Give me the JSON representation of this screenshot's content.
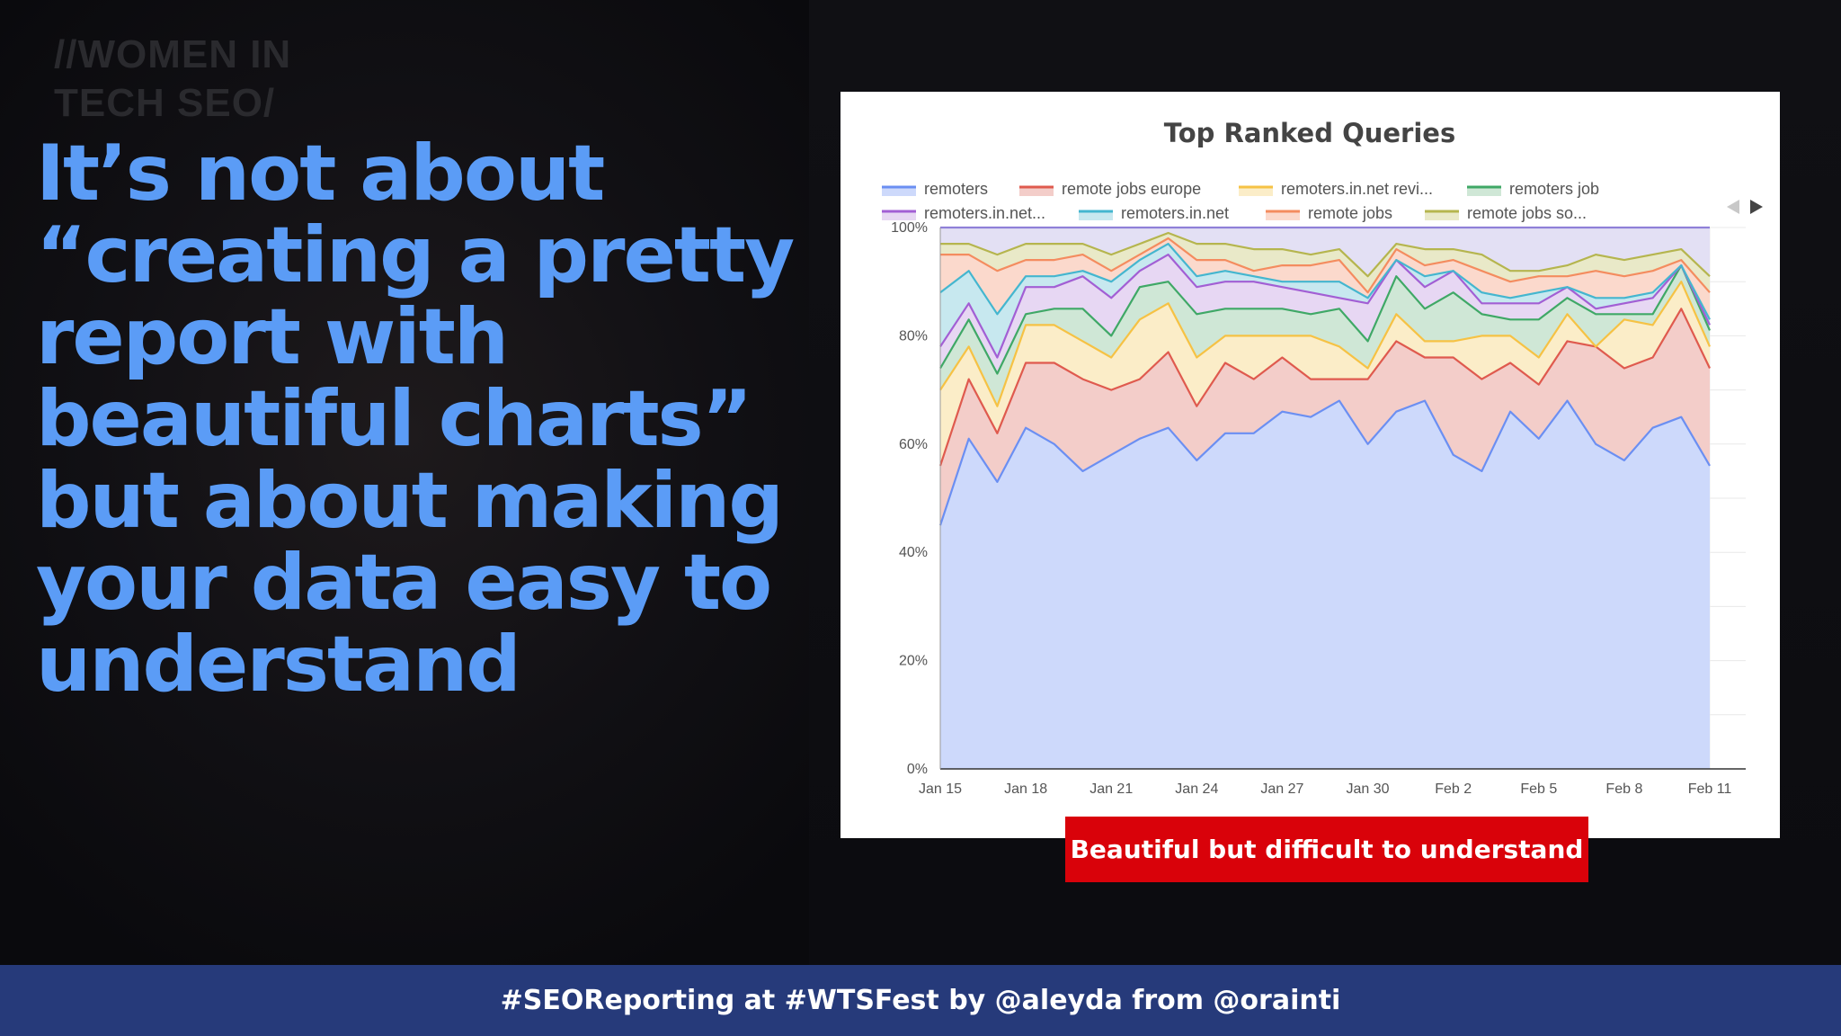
{
  "slide": {
    "logo_line1": "//WOMEN IN",
    "logo_line2": "TECH SEO/",
    "headline": "It’s not about “creating a pretty report with beautiful charts” but about making your data easy to understand",
    "caption": "Beautiful but difficult to understand",
    "footer": "#SEOReporting at #WTSFest by @aleyda from @orainti",
    "colors": {
      "headline": "#5b9cf6",
      "caption_bg": "#d9020a",
      "footer_bg": "#263a7a"
    }
  },
  "chart_data": {
    "type": "area",
    "stacked": "percent",
    "title": "Top Ranked Queries",
    "legend_position": "top",
    "y_ticks": [
      "0%",
      "20%",
      "40%",
      "60%",
      "80%",
      "100%"
    ],
    "ylim": [
      0,
      100
    ],
    "x_ticks": [
      "Jan 15",
      "Jan 18",
      "Jan 21",
      "Jan 24",
      "Jan 27",
      "Jan 30",
      "Feb 2",
      "Feb 5",
      "Feb 8",
      "Feb 11"
    ],
    "x": [
      "Jan 15",
      "Jan 16",
      "Jan 17",
      "Jan 18",
      "Jan 19",
      "Jan 20",
      "Jan 21",
      "Jan 22",
      "Jan 23",
      "Jan 24",
      "Jan 25",
      "Jan 26",
      "Jan 27",
      "Jan 28",
      "Jan 29",
      "Jan 30",
      "Jan 31",
      "Feb 1",
      "Feb 2",
      "Feb 3",
      "Feb 4",
      "Feb 5",
      "Feb 6",
      "Feb 7",
      "Feb 8",
      "Feb 9",
      "Feb 10",
      "Feb 11"
    ],
    "grid": true,
    "series": [
      {
        "name": "remoters",
        "color": "#6b8ff2",
        "fill": "#cdd9fb",
        "values": [
          45,
          61,
          53,
          63,
          60,
          55,
          58,
          61,
          63,
          57,
          62,
          62,
          66,
          65,
          68,
          60,
          66,
          68,
          58,
          55,
          66,
          61,
          68,
          60,
          57,
          63,
          65,
          56
        ]
      },
      {
        "name": "remote jobs europe",
        "color": "#df5a4e",
        "fill": "#f3cdc9",
        "values": [
          11,
          11,
          9,
          12,
          15,
          17,
          12,
          11,
          14,
          10,
          13,
          10,
          10,
          7,
          4,
          12,
          13,
          8,
          18,
          17,
          9,
          10,
          11,
          18,
          17,
          13,
          20,
          18
        ]
      },
      {
        "name": "remoters.in.net revi...",
        "color": "#f6c244",
        "fill": "#fbedc8",
        "values": [
          14,
          6,
          5,
          7,
          7,
          7,
          6,
          11,
          9,
          9,
          5,
          8,
          4,
          8,
          6,
          2,
          5,
          3,
          3,
          8,
          5,
          5,
          5,
          0,
          9,
          6,
          5,
          4
        ]
      },
      {
        "name": "remoters job",
        "color": "#3fa866",
        "fill": "#cfe7d6",
        "values": [
          4,
          5,
          6,
          2,
          3,
          6,
          4,
          6,
          4,
          8,
          5,
          5,
          5,
          4,
          7,
          5,
          7,
          6,
          9,
          4,
          3,
          7,
          3,
          6,
          1,
          2,
          3,
          3
        ]
      },
      {
        "name": "remoters.in.net...",
        "color": "#a25fd4",
        "fill": "#e7d7f3",
        "values": [
          4,
          3,
          3,
          5,
          4,
          6,
          7,
          3,
          5,
          5,
          5,
          5,
          4,
          4,
          2,
          7,
          3,
          4,
          4,
          2,
          3,
          3,
          2,
          1,
          2,
          3,
          0,
          1
        ]
      },
      {
        "name": "remoters.in.net",
        "color": "#44b6cf",
        "fill": "#c7e8ef",
        "values": [
          10,
          6,
          8,
          2,
          2,
          1,
          3,
          2,
          2,
          2,
          2,
          1,
          1,
          2,
          3,
          1,
          0,
          2,
          0,
          2,
          1,
          2,
          0,
          2,
          1,
          1,
          0,
          1
        ]
      },
      {
        "name": "remote jobs",
        "color": "#f48c5f",
        "fill": "#fbd9cc",
        "values": [
          7,
          3,
          8,
          3,
          3,
          3,
          2,
          1,
          1,
          3,
          2,
          1,
          3,
          3,
          4,
          1,
          2,
          2,
          2,
          4,
          3,
          3,
          2,
          5,
          4,
          4,
          1,
          5
        ]
      },
      {
        "name": "remote jobs so...",
        "color": "#b5b54e",
        "fill": "#e9e9c8",
        "values": [
          2,
          2,
          3,
          3,
          3,
          2,
          3,
          2,
          1,
          3,
          3,
          4,
          3,
          2,
          2,
          3,
          1,
          3,
          2,
          3,
          2,
          1,
          2,
          3,
          3,
          3,
          2,
          3
        ]
      },
      {
        "name": "",
        "color": "#8f80d8",
        "fill": "#e3e0f4",
        "values": [
          3,
          3,
          5,
          3,
          3,
          3,
          5,
          3,
          1,
          3,
          3,
          4,
          4,
          5,
          4,
          9,
          3,
          4,
          4,
          5,
          8,
          8,
          7,
          5,
          6,
          5,
          4,
          9
        ]
      }
    ],
    "legend_items": [
      "remoters",
      "remote jobs europe",
      "remoters.in.net revi...",
      "remoters job",
      "remoters.in.net...",
      "remoters.in.net",
      "remote jobs",
      "remote jobs so..."
    ]
  }
}
